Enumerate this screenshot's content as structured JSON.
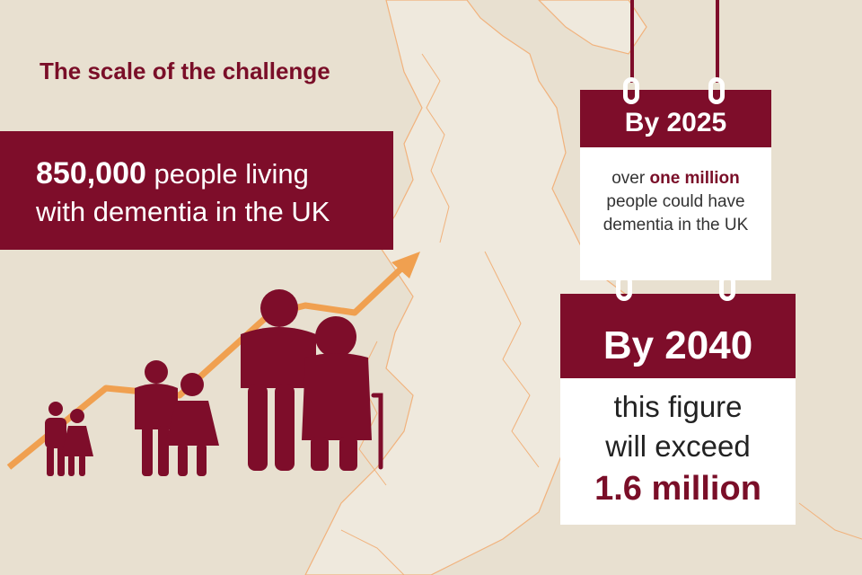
{
  "title": "The scale of the challenge",
  "stat": {
    "number": "850,000",
    "line1_rest": " people living",
    "line2": "with dementia in the UK"
  },
  "card_2025": {
    "heading": "By 2025",
    "line1_pre": "over ",
    "line1_highlight": "one million",
    "line2": "people could have",
    "line3": "dementia in the UK"
  },
  "card_2040": {
    "heading": "By 2040",
    "line1": "this figure",
    "line2": "will exceed",
    "highlight": "1.6 million"
  },
  "colors": {
    "background": "#e8e0d0",
    "brand": "#7e0d2a",
    "accent": "#f0a050",
    "map_outline": "#f1b27c",
    "card": "#ffffff"
  },
  "icons": [
    "growth-arrow-icon",
    "family-group-icon",
    "uk-map-outline"
  ]
}
